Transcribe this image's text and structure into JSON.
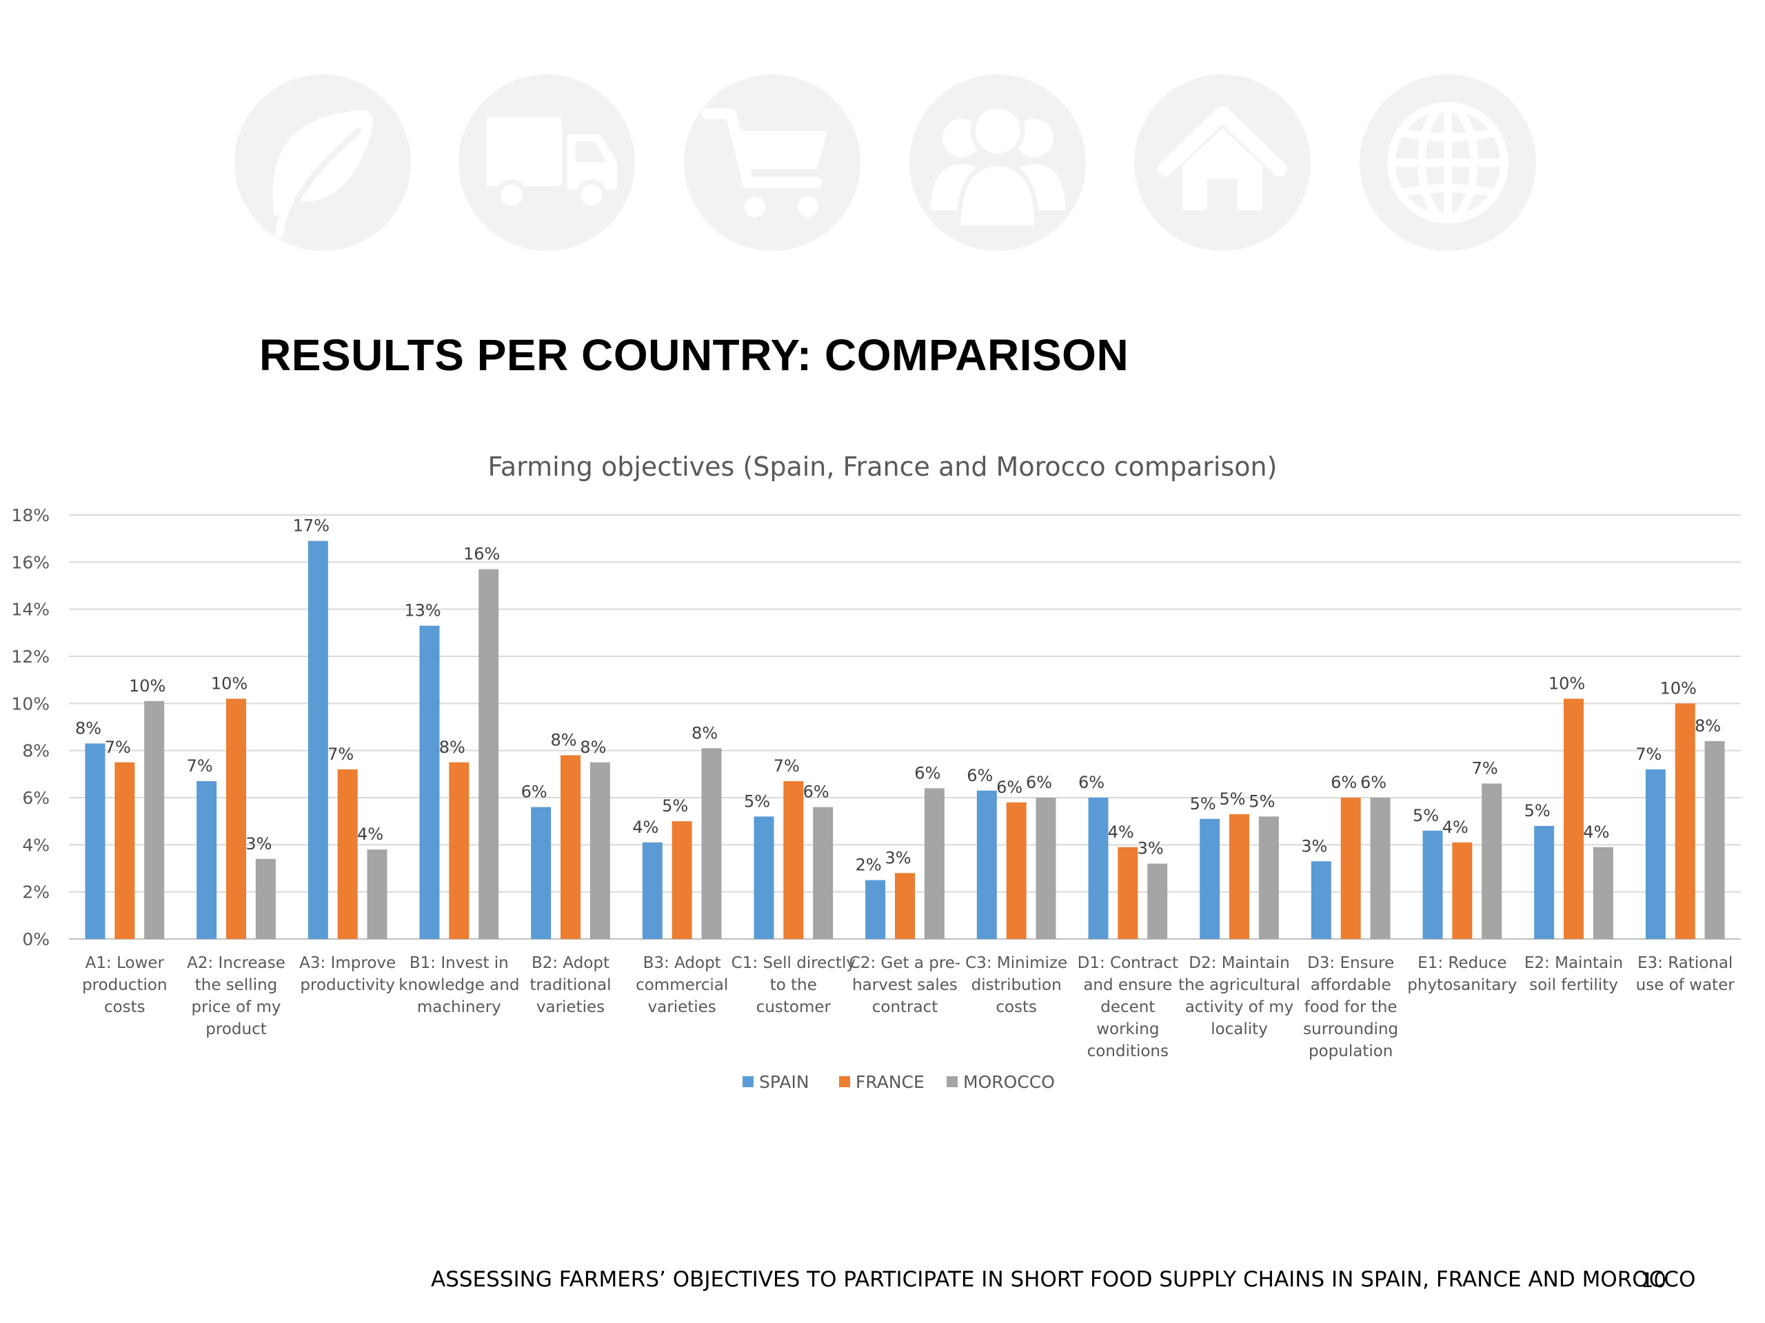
{
  "header": {
    "title": "RESULTS PER COUNTRY: COMPARISON",
    "icons": [
      "leaf-icon",
      "truck-icon",
      "cart-icon",
      "users-icon",
      "home-icon",
      "globe-icon"
    ],
    "icon_color": "#f2f2f2"
  },
  "chart_data": {
    "type": "bar",
    "title": "Farming objectives (Spain, France and Morocco comparison)",
    "xlabel": "",
    "ylabel": "",
    "ylim": [
      0,
      18
    ],
    "yticks": [
      "0%",
      "2%",
      "4%",
      "6%",
      "8%",
      "10%",
      "12%",
      "14%",
      "16%",
      "18%"
    ],
    "grid": true,
    "legend": "bottom",
    "categories": [
      [
        "A1: Lower",
        "production",
        "costs"
      ],
      [
        "A2: Increase",
        "the selling",
        "price of my",
        "product"
      ],
      [
        "A3: Improve",
        "productivity"
      ],
      [
        "B1: Invest in",
        "knowledge and",
        "machinery"
      ],
      [
        "B2: Adopt",
        "traditional",
        "varieties"
      ],
      [
        "B3: Adopt",
        "commercial",
        "varieties"
      ],
      [
        "C1: Sell directly",
        "to the",
        "customer"
      ],
      [
        "C2: Get a pre-",
        "harvest sales",
        "contract"
      ],
      [
        "C3: Minimize",
        "distribution",
        "costs"
      ],
      [
        "D1: Contract",
        "and ensure",
        "decent",
        "working",
        "conditions"
      ],
      [
        "D2: Maintain",
        "the agricultural",
        "activity of my",
        "locality"
      ],
      [
        "D3: Ensure",
        "affordable",
        "food for the",
        "surrounding",
        "population"
      ],
      [
        "E1: Reduce",
        "phytosanitary"
      ],
      [
        "E2: Maintain",
        "soil fertility"
      ],
      [
        "E3: Rational",
        "use of water"
      ]
    ],
    "series": [
      {
        "name": "SPAIN",
        "color": "#5b9bd5",
        "values": [
          8.3,
          6.7,
          16.9,
          13.3,
          5.6,
          4.1,
          5.2,
          2.5,
          6.3,
          6.0,
          5.1,
          3.3,
          4.6,
          4.8,
          7.2
        ],
        "labels": [
          "8%",
          "7%",
          "17%",
          "13%",
          "6%",
          "4%",
          "5%",
          "2%",
          "6%",
          "6%",
          "5%",
          "3%",
          "5%",
          "5%",
          "7%"
        ]
      },
      {
        "name": "FRANCE",
        "color": "#ed7d31",
        "values": [
          7.5,
          10.2,
          7.2,
          7.5,
          7.8,
          5.0,
          6.7,
          2.8,
          5.8,
          3.9,
          5.3,
          6.0,
          4.1,
          10.2,
          10.0
        ],
        "labels": [
          "7%",
          "10%",
          "7%",
          "8%",
          "8%",
          "5%",
          "7%",
          "3%",
          "6%",
          "4%",
          "5%",
          "6%",
          "4%",
          "10%",
          "10%"
        ]
      },
      {
        "name": "MOROCCO",
        "color": "#a5a5a5",
        "values": [
          10.1,
          3.4,
          3.8,
          15.7,
          7.5,
          8.1,
          5.6,
          6.4,
          6.0,
          3.2,
          5.2,
          6.0,
          6.6,
          3.9,
          8.4
        ],
        "labels": [
          "10%",
          "3%",
          "4%",
          "16%",
          "8%",
          "8%",
          "6%",
          "6%",
          "6%",
          "3%",
          "5%",
          "6%",
          "7%",
          "4%",
          "8%"
        ]
      }
    ]
  },
  "footer": {
    "text": "ASSESSING FARMERS’ OBJECTIVES TO PARTICIPATE IN SHORT FOOD SUPPLY CHAINS IN SPAIN, FRANCE AND MOROCCO",
    "page_number": "10"
  }
}
